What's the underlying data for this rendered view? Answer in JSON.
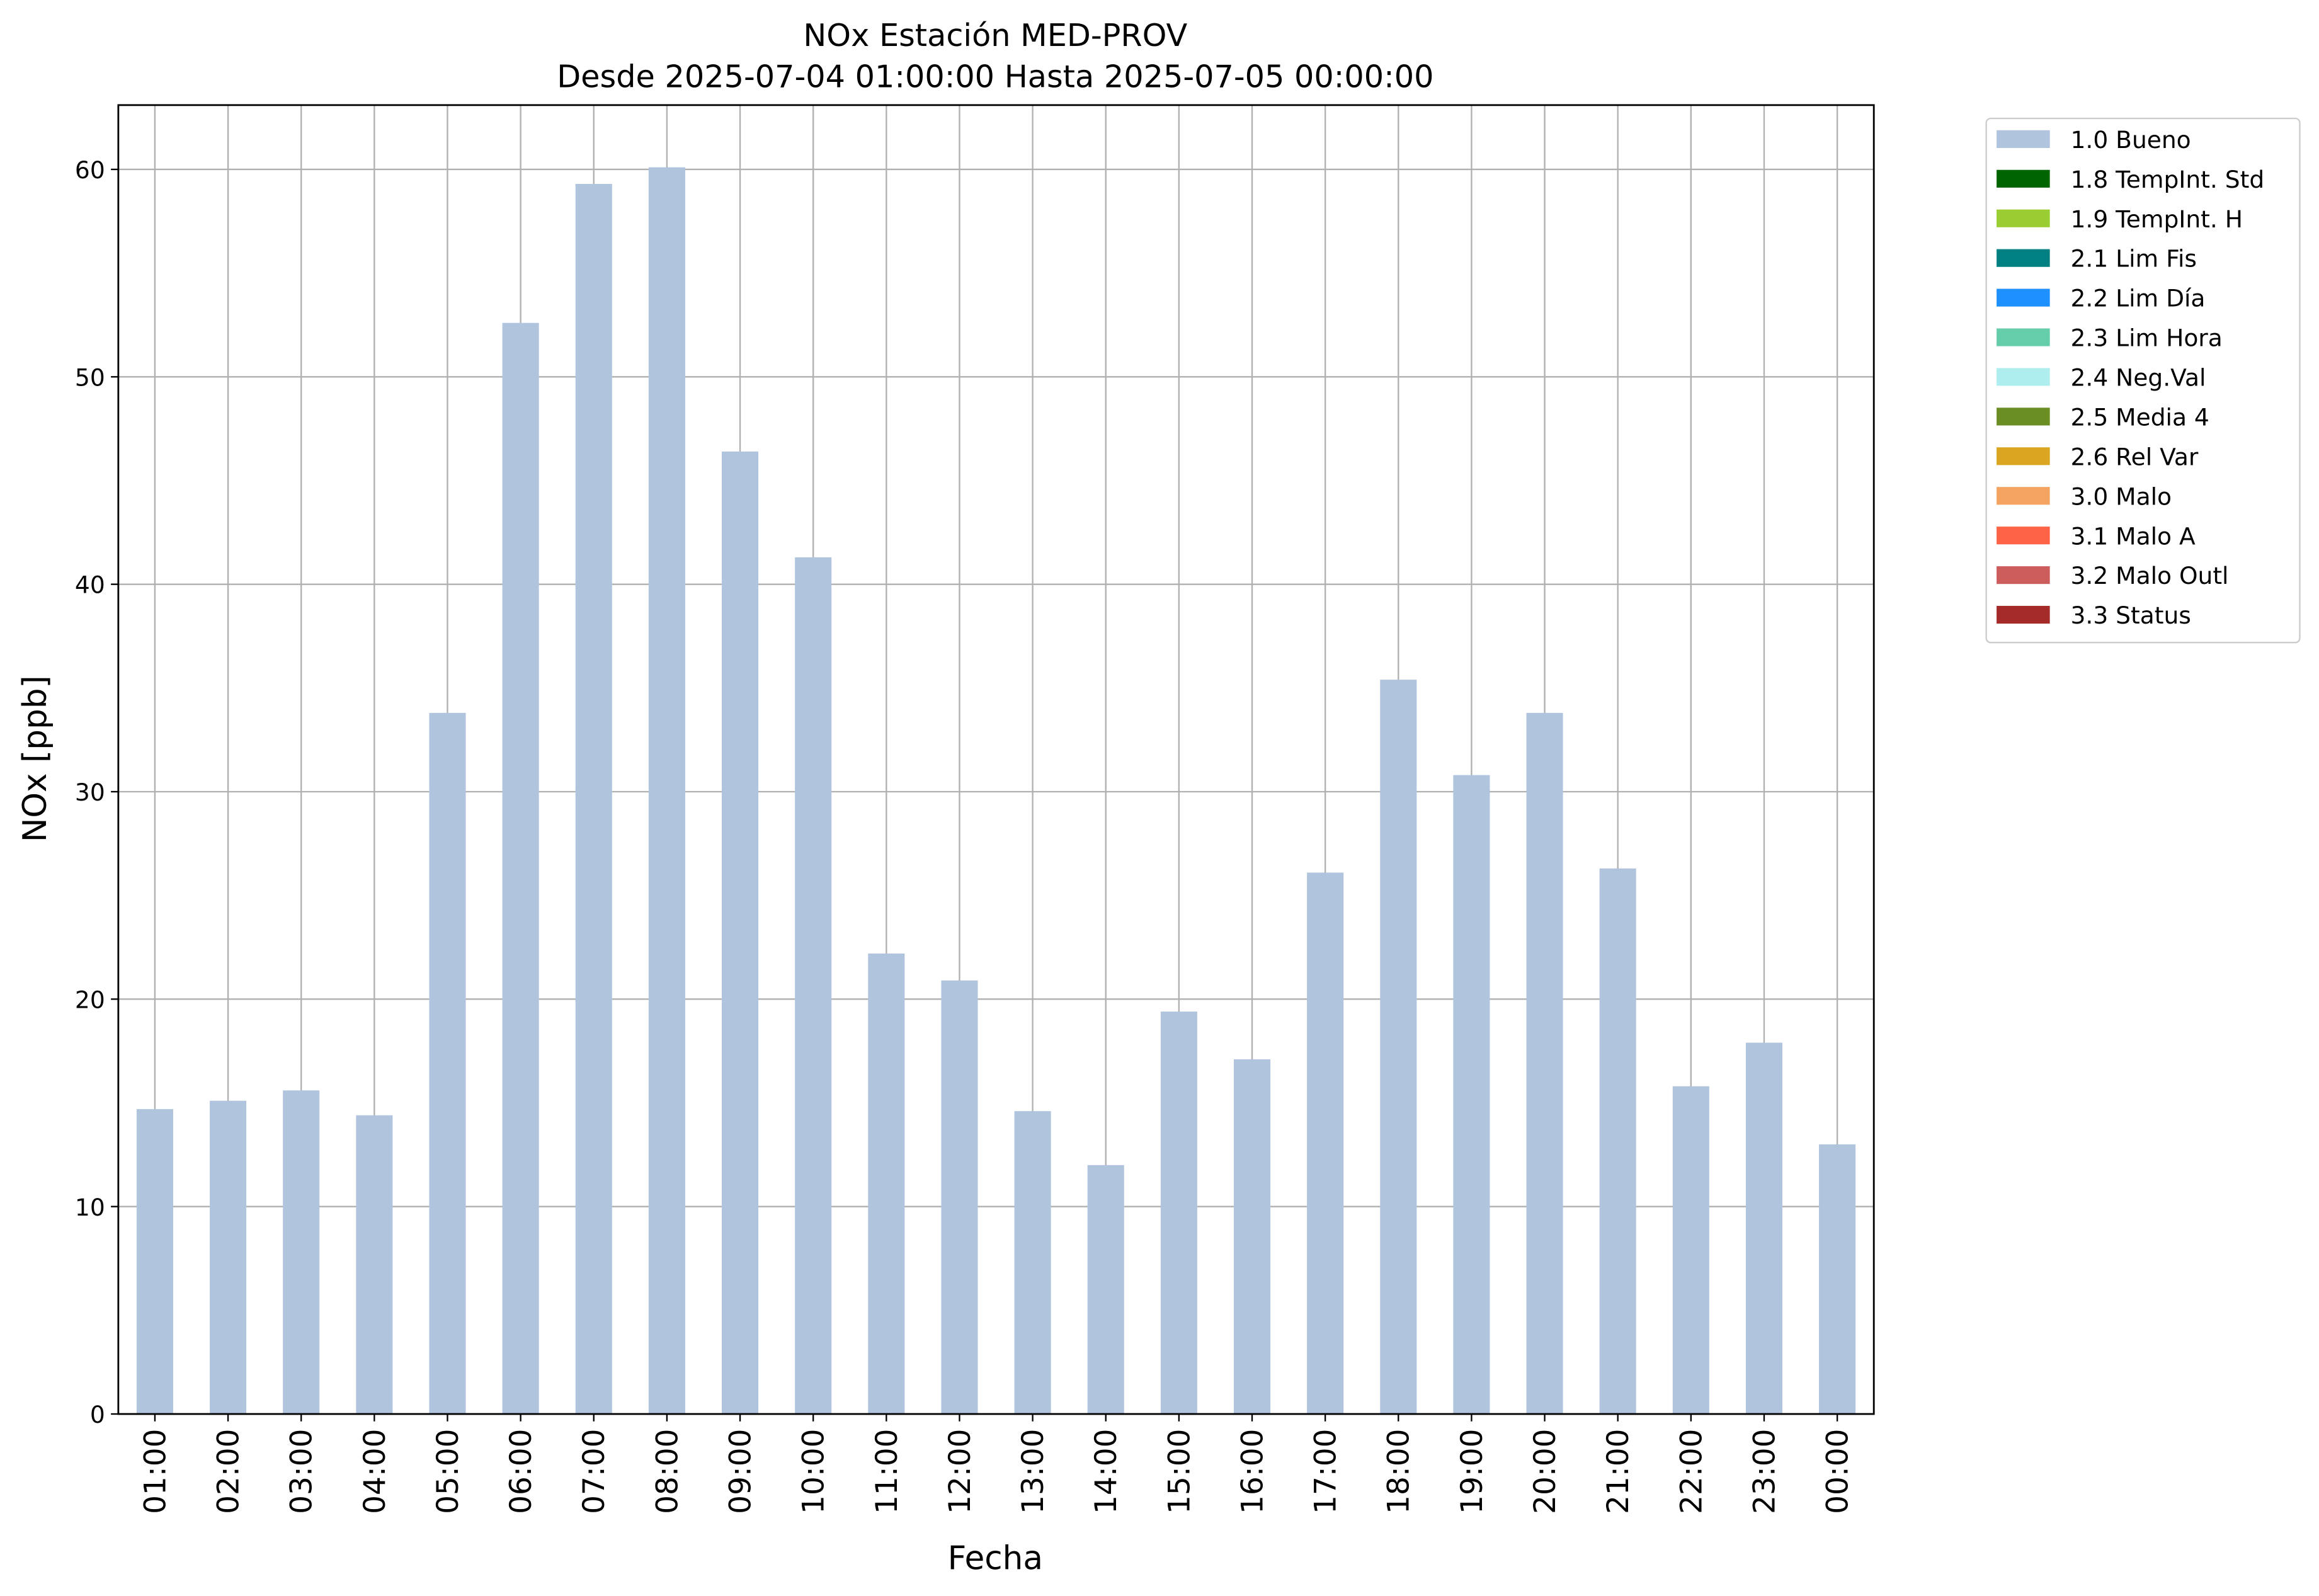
{
  "chart_data": {
    "type": "bar",
    "stacked": true,
    "title": "NOx Estación MED-PROV",
    "subtitle": "Desde 2025-07-04 01:00:00 Hasta 2025-07-05 00:00:00",
    "x_label": "Fecha",
    "y_label": "NOx [ppb]",
    "categories": [
      "01:00",
      "02:00",
      "03:00",
      "04:00",
      "05:00",
      "06:00",
      "07:00",
      "08:00",
      "09:00",
      "10:00",
      "11:00",
      "12:00",
      "13:00",
      "14:00",
      "15:00",
      "16:00",
      "17:00",
      "18:00",
      "19:00",
      "20:00",
      "21:00",
      "22:00",
      "23:00",
      "00:00"
    ],
    "series": [
      {
        "name": "1.0 Bueno",
        "color": "#b0c4de",
        "values": [
          14.7,
          15.1,
          15.6,
          14.4,
          33.8,
          52.6,
          59.3,
          60.1,
          46.4,
          41.3,
          22.2,
          20.9,
          14.6,
          12.0,
          19.4,
          17.1,
          26.1,
          35.4,
          30.8,
          33.8,
          26.3,
          15.8,
          17.9,
          13.0
        ]
      },
      {
        "name": "1.8 TempInt. Std",
        "color": "#006400",
        "values": [
          0,
          0,
          0,
          0,
          0,
          0,
          0,
          0,
          0,
          0,
          0,
          0,
          0,
          0,
          0,
          0,
          0,
          0,
          0,
          0,
          0,
          0,
          0,
          0
        ]
      },
      {
        "name": "1.9 TempInt. H",
        "color": "#9acd32",
        "values": [
          0,
          0,
          0,
          0,
          0,
          0,
          0,
          0,
          0,
          0,
          0,
          0,
          0,
          0,
          0,
          0,
          0,
          0,
          0,
          0,
          0,
          0,
          0,
          0
        ]
      },
      {
        "name": "2.1 Lim Fis",
        "color": "#008080",
        "values": [
          0,
          0,
          0,
          0,
          0,
          0,
          0,
          0,
          0,
          0,
          0,
          0,
          0,
          0,
          0,
          0,
          0,
          0,
          0,
          0,
          0,
          0,
          0,
          0
        ]
      },
      {
        "name": "2.2 Lim Día",
        "color": "#1e90ff",
        "values": [
          0,
          0,
          0,
          0,
          0,
          0,
          0,
          0,
          0,
          0,
          0,
          0,
          0,
          0,
          0,
          0,
          0,
          0,
          0,
          0,
          0,
          0,
          0,
          0
        ]
      },
      {
        "name": "2.3 Lim Hora",
        "color": "#66cdaa",
        "values": [
          0,
          0,
          0,
          0,
          0,
          0,
          0,
          0,
          0,
          0,
          0,
          0,
          0,
          0,
          0,
          0,
          0,
          0,
          0,
          0,
          0,
          0,
          0,
          0
        ]
      },
      {
        "name": "2.4 Neg.Val",
        "color": "#afeeee",
        "values": [
          0,
          0,
          0,
          0,
          0,
          0,
          0,
          0,
          0,
          0,
          0,
          0,
          0,
          0,
          0,
          0,
          0,
          0,
          0,
          0,
          0,
          0,
          0,
          0
        ]
      },
      {
        "name": "2.5 Media 4",
        "color": "#6b8e23",
        "values": [
          0,
          0,
          0,
          0,
          0,
          0,
          0,
          0,
          0,
          0,
          0,
          0,
          0,
          0,
          0,
          0,
          0,
          0,
          0,
          0,
          0,
          0,
          0,
          0
        ]
      },
      {
        "name": "2.6 Rel Var",
        "color": "#daa520",
        "values": [
          0,
          0,
          0,
          0,
          0,
          0,
          0,
          0,
          0,
          0,
          0,
          0,
          0,
          0,
          0,
          0,
          0,
          0,
          0,
          0,
          0,
          0,
          0,
          0
        ]
      },
      {
        "name": "3.0 Malo",
        "color": "#f4a460",
        "values": [
          0,
          0,
          0,
          0,
          0,
          0,
          0,
          0,
          0,
          0,
          0,
          0,
          0,
          0,
          0,
          0,
          0,
          0,
          0,
          0,
          0,
          0,
          0,
          0
        ]
      },
      {
        "name": "3.1 Malo A",
        "color": "#ff6347",
        "values": [
          0,
          0,
          0,
          0,
          0,
          0,
          0,
          0,
          0,
          0,
          0,
          0,
          0,
          0,
          0,
          0,
          0,
          0,
          0,
          0,
          0,
          0,
          0,
          0
        ]
      },
      {
        "name": "3.2 Malo Outl",
        "color": "#cd5c5c",
        "values": [
          0,
          0,
          0,
          0,
          0,
          0,
          0,
          0,
          0,
          0,
          0,
          0,
          0,
          0,
          0,
          0,
          0,
          0,
          0,
          0,
          0,
          0,
          0,
          0
        ]
      },
      {
        "name": "3.3 Status",
        "color": "#a52a2a",
        "values": [
          0,
          0,
          0,
          0,
          0,
          0,
          0,
          0,
          0,
          0,
          0,
          0,
          0,
          0,
          0,
          0,
          0,
          0,
          0,
          0,
          0,
          0,
          0,
          0
        ]
      }
    ],
    "ylim": [
      0,
      63.1
    ],
    "yticks": [
      0,
      10,
      20,
      30,
      40,
      50,
      60
    ],
    "grid": true,
    "legend": "outside-upper-right"
  }
}
